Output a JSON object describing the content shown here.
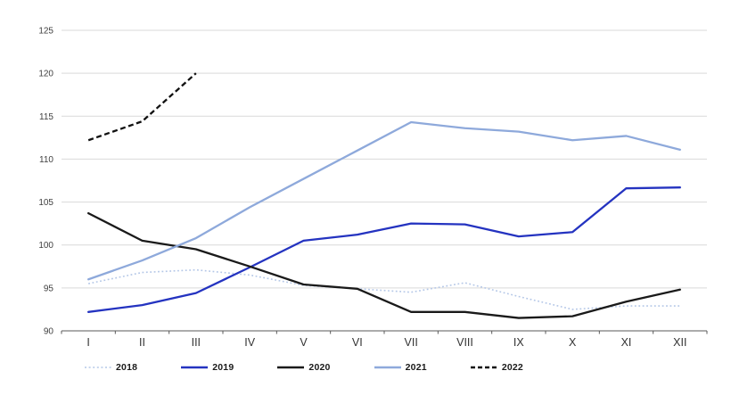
{
  "chart_data": {
    "type": "line",
    "title": "",
    "categories": [
      "I",
      "II",
      "III",
      "IV",
      "V",
      "VI",
      "VII",
      "VIII",
      "IX",
      "X",
      "XI",
      "XII"
    ],
    "series": [
      {
        "name": "2018",
        "color": "#b4c7e7",
        "line_style": "dotted",
        "values": [
          95.5,
          96.8,
          97.1,
          96.5,
          95.3,
          94.9,
          94.5,
          95.6,
          94.0,
          92.5,
          92.9,
          92.9
        ]
      },
      {
        "name": "2019",
        "color": "#2433c0",
        "line_style": "solid",
        "values": [
          92.2,
          93.0,
          94.4,
          97.4,
          100.5,
          101.2,
          102.5,
          102.4,
          101.0,
          101.5,
          106.6,
          106.7
        ]
      },
      {
        "name": "2020",
        "color": "#1a1a1a",
        "line_style": "solid",
        "values": [
          103.7,
          100.5,
          99.5,
          97.5,
          95.4,
          94.9,
          92.2,
          92.2,
          91.5,
          91.7,
          93.4,
          94.8
        ]
      },
      {
        "name": "2021",
        "color": "#8ea9db",
        "line_style": "solid",
        "values": [
          96.0,
          98.2,
          100.8,
          104.4,
          107.7,
          111.0,
          114.3,
          113.6,
          113.2,
          112.2,
          112.7,
          111.1
        ]
      },
      {
        "name": "2022",
        "color": "#111111",
        "line_style": "dashed",
        "values": [
          112.2,
          114.4,
          120.0
        ]
      }
    ],
    "xlabel": "",
    "ylabel": "",
    "ylim": [
      90,
      125
    ],
    "yticks": [
      90,
      95,
      100,
      105,
      110,
      115,
      120,
      125
    ],
    "grid": true,
    "legend_position": "bottom",
    "colors": {
      "gridline": "#d9d9d9",
      "axis_line": "#595959",
      "tick_label": "#404040"
    }
  }
}
